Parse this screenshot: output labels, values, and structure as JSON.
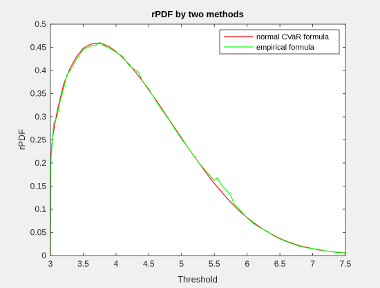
{
  "chart_data": {
    "type": "line",
    "title": "rPDF by two methods",
    "xlabel": "Threshold",
    "ylabel": "rPDF",
    "xlim": [
      3,
      7.5
    ],
    "ylim": [
      0,
      0.5
    ],
    "xticks": [
      3,
      3.5,
      4,
      4.5,
      5,
      5.5,
      6,
      6.5,
      7,
      7.5
    ],
    "xtick_labels": [
      "3",
      "3.5",
      "4",
      "4.5",
      "5",
      "5.5",
      "6",
      "6.5",
      "7",
      "7.5"
    ],
    "yticks": [
      0,
      0.05,
      0.1,
      0.15,
      0.2,
      0.25,
      0.3,
      0.35,
      0.4,
      0.45,
      0.5
    ],
    "ytick_labels": [
      "0",
      "0.05",
      "0.1",
      "0.15",
      "0.2",
      "0.25",
      "0.3",
      "0.35",
      "0.4",
      "0.45",
      "0.5"
    ],
    "grid": false,
    "legend_position": "top-right",
    "series": [
      {
        "name": "normal CVaR formula",
        "color": "#ff0000",
        "x": [
          3.0,
          3.005,
          3.02,
          3.05,
          3.1,
          3.15,
          3.2,
          3.3,
          3.4,
          3.5,
          3.6,
          3.7,
          3.8,
          3.9,
          4.0,
          4.1,
          4.2,
          4.3,
          4.4,
          4.5,
          4.6,
          4.7,
          4.8,
          4.9,
          5.0,
          5.1,
          5.2,
          5.3,
          5.4,
          5.5,
          5.6,
          5.7,
          5.8,
          5.9,
          6.0,
          6.1,
          6.2,
          6.3,
          6.4,
          6.5,
          6.6,
          6.7,
          6.8,
          6.9,
          7.0,
          7.1,
          7.2,
          7.3,
          7.4,
          7.5
        ],
        "y": [
          0.0,
          0.2,
          0.24,
          0.27,
          0.31,
          0.34,
          0.37,
          0.405,
          0.43,
          0.448,
          0.456,
          0.459,
          0.457,
          0.451,
          0.441,
          0.428,
          0.413,
          0.396,
          0.378,
          0.358,
          0.338,
          0.317,
          0.296,
          0.275,
          0.254,
          0.233,
          0.213,
          0.193,
          0.174,
          0.156,
          0.139,
          0.123,
          0.108,
          0.094,
          0.082,
          0.071,
          0.061,
          0.052,
          0.044,
          0.037,
          0.031,
          0.026,
          0.021,
          0.018,
          0.015,
          0.012,
          0.01,
          0.008,
          0.007,
          0.005
        ]
      },
      {
        "name": "empirical formula",
        "color": "#00ff00",
        "x": [
          3.0,
          3.005,
          3.02,
          3.05,
          3.1,
          3.15,
          3.2,
          3.25,
          3.3,
          3.4,
          3.5,
          3.6,
          3.7,
          3.75,
          3.8,
          3.9,
          4.0,
          4.1,
          4.2,
          4.3,
          4.35,
          4.4,
          4.5,
          4.6,
          4.7,
          4.8,
          4.9,
          5.0,
          5.1,
          5.2,
          5.3,
          5.4,
          5.5,
          5.55,
          5.6,
          5.7,
          5.75,
          5.8,
          5.9,
          6.0,
          6.1,
          6.2,
          6.3,
          6.4,
          6.5,
          6.6,
          6.7,
          6.8,
          6.9,
          7.0,
          7.1,
          7.2,
          7.3,
          7.4,
          7.5
        ],
        "y": [
          0.0,
          0.2,
          0.23,
          0.285,
          0.3,
          0.335,
          0.36,
          0.39,
          0.4,
          0.425,
          0.445,
          0.452,
          0.455,
          0.461,
          0.455,
          0.448,
          0.44,
          0.43,
          0.411,
          0.4,
          0.395,
          0.378,
          0.36,
          0.336,
          0.315,
          0.295,
          0.273,
          0.252,
          0.233,
          0.213,
          0.194,
          0.178,
          0.163,
          0.168,
          0.154,
          0.139,
          0.13,
          0.112,
          0.097,
          0.081,
          0.069,
          0.06,
          0.053,
          0.043,
          0.036,
          0.03,
          0.025,
          0.02,
          0.017,
          0.015,
          0.013,
          0.01,
          0.008,
          0.006,
          0.006
        ]
      }
    ]
  }
}
